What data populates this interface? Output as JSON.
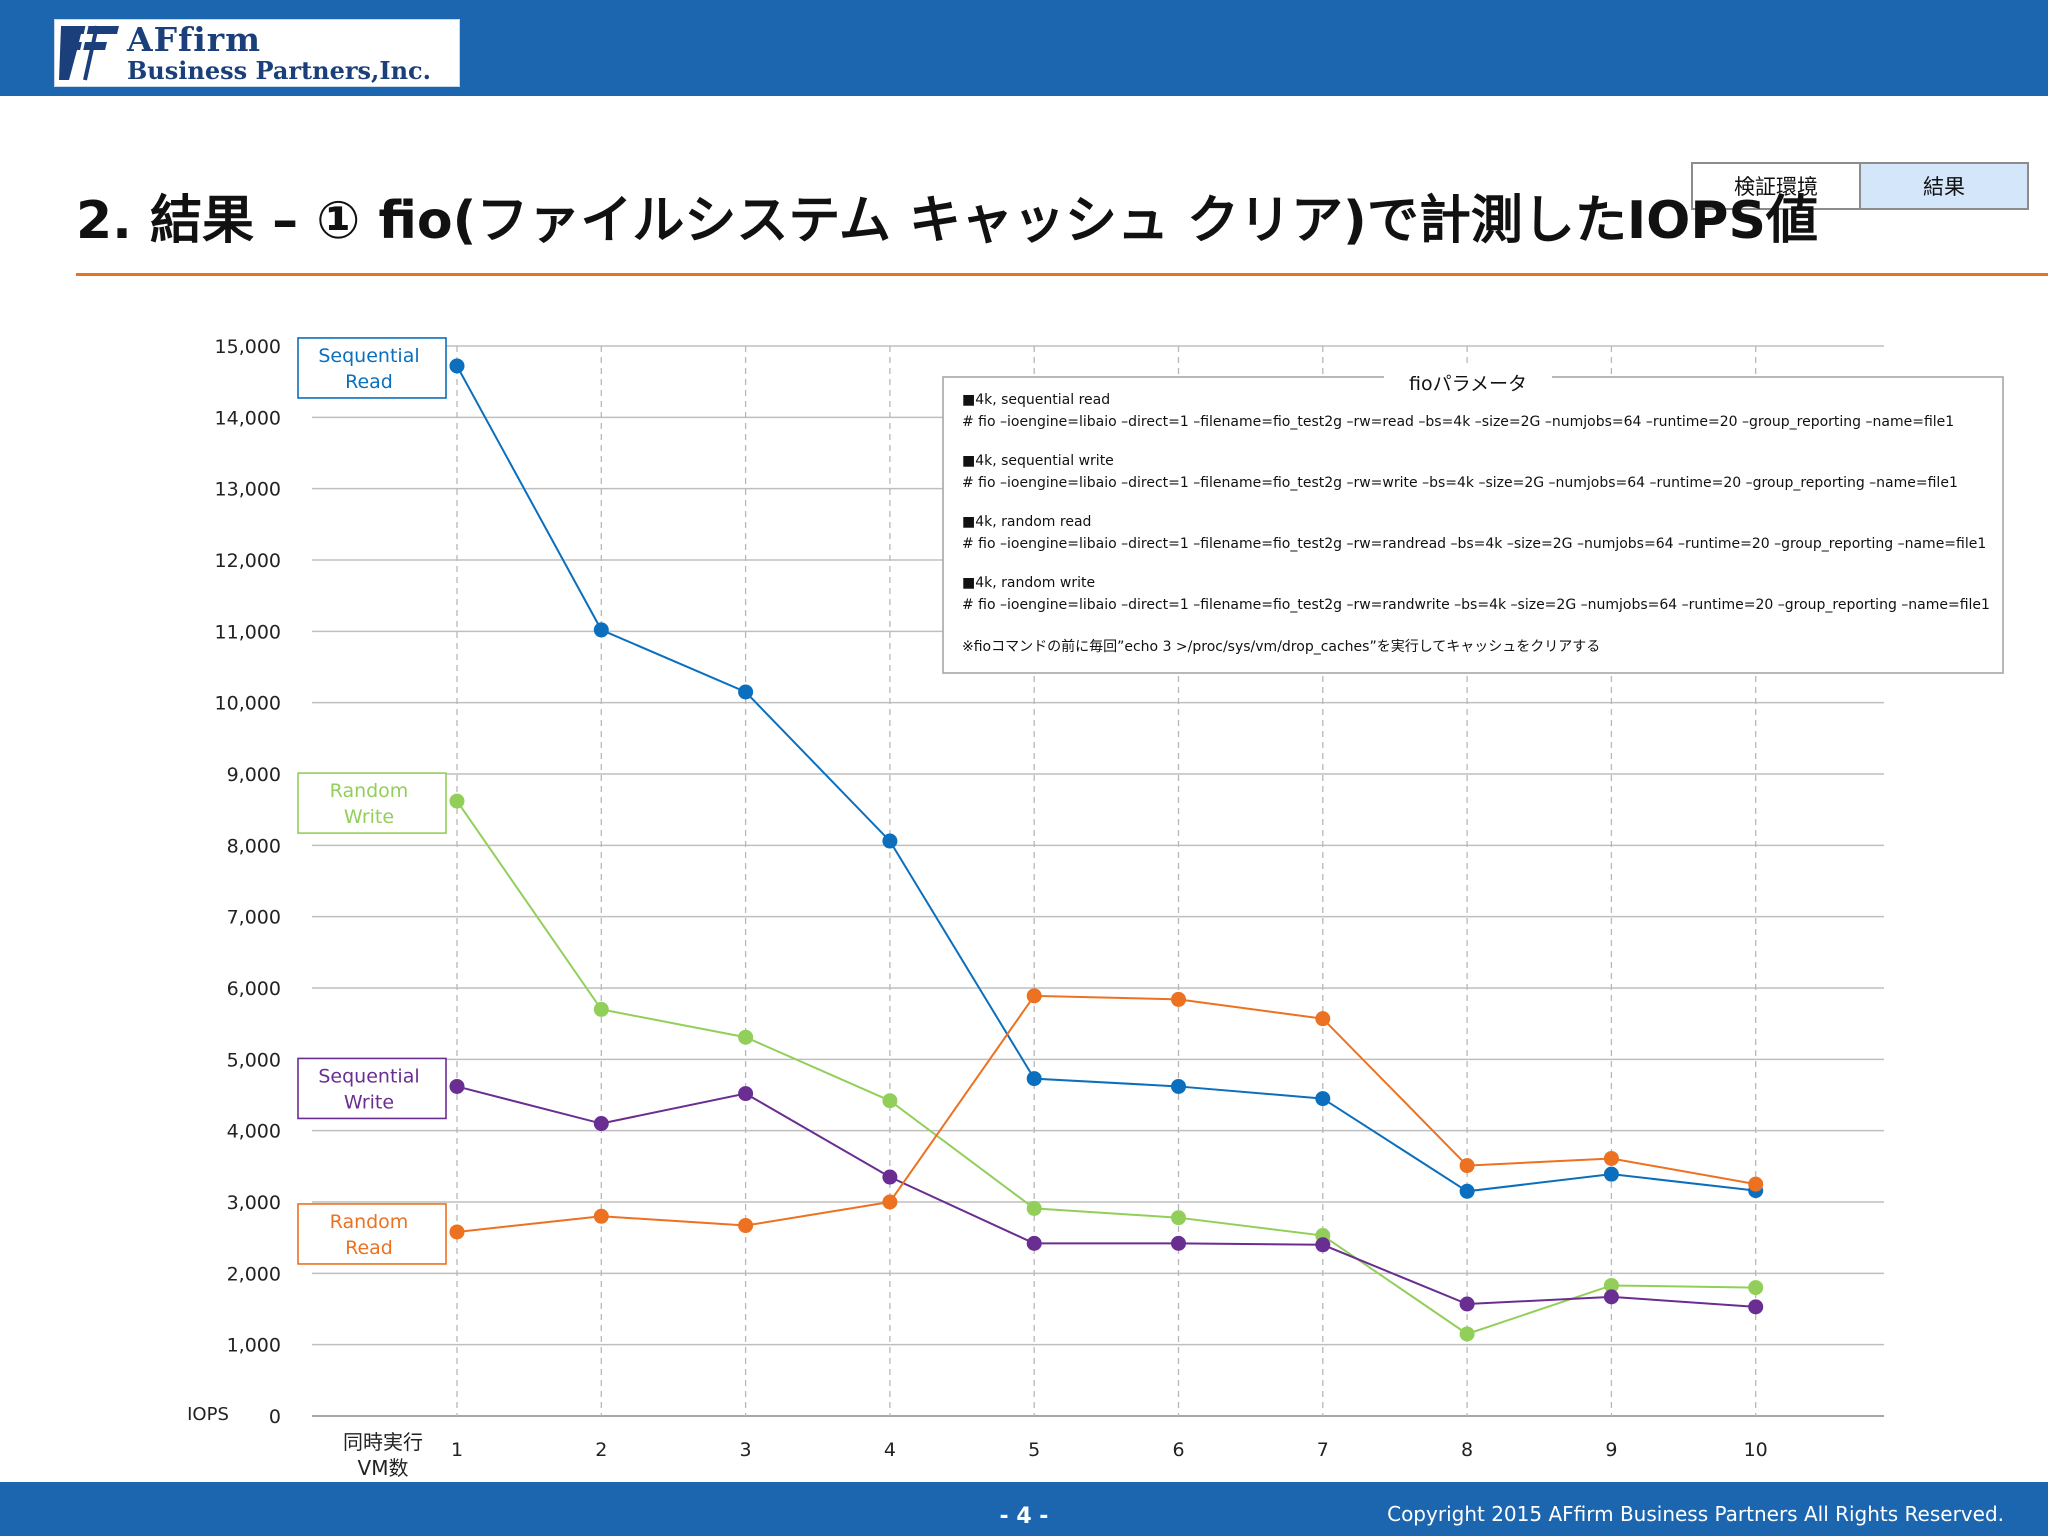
{
  "header": {
    "logo_line1": "AFfirm",
    "logo_line2": "Business Partners,Inc."
  },
  "nav": {
    "tabs": [
      {
        "label": "検証環境",
        "active": false
      },
      {
        "label": "結果",
        "active": true
      }
    ]
  },
  "page_title": "2. 結果 – ① fio(ファイルシステム キャッシュ クリア)で計測したIOPS値",
  "colors": {
    "brand_blue": "#1c66b0",
    "accent_orange": "#e8731e"
  },
  "chart_data": {
    "type": "line",
    "ylabel": "IOPS",
    "xlabel": "同時実行\nVM数",
    "ylim": [
      0,
      15000
    ],
    "ytick_labels": [
      "0",
      "1,000",
      "2,000",
      "3,000",
      "4,000",
      "5,000",
      "6,000",
      "7,000",
      "8,000",
      "9,000",
      "10,000",
      "11,000",
      "12,000",
      "13,000",
      "14,000",
      "15,000"
    ],
    "categories": [
      "1",
      "2",
      "3",
      "4",
      "5",
      "6",
      "7",
      "8",
      "9",
      "10"
    ],
    "grid": true,
    "series": [
      {
        "name": "Sequential\nRead",
        "color": "#0b6fbd",
        "values": [
          14720,
          11020,
          10150,
          8060,
          4730,
          4620,
          4450,
          3150,
          3390,
          3160
        ]
      },
      {
        "name": "Random\nWrite",
        "color": "#92cf5a",
        "values": [
          8620,
          5700,
          5310,
          4420,
          2910,
          2780,
          2530,
          1150,
          1830,
          1800
        ]
      },
      {
        "name": "Sequential\nWrite",
        "color": "#6a2d91",
        "values": [
          4620,
          4100,
          4520,
          3350,
          2420,
          2420,
          2400,
          1570,
          1670,
          1530
        ]
      },
      {
        "name": "Random\nRead",
        "color": "#ec7120",
        "values": [
          2580,
          2800,
          2670,
          3000,
          5890,
          5840,
          5570,
          3510,
          3610,
          3250
        ]
      }
    ],
    "annotation": {
      "title": "fioパラメータ",
      "lines": [
        "■4k, sequential read",
        "# fio –ioengine=libaio –direct=1 –filename=fio_test2g  –rw=read –bs=4k –size=2G –numjobs=64 –runtime=20 –group_reporting –name=file1",
        "■4k, sequential write",
        "# fio –ioengine=libaio –direct=1 –filename=fio_test2g  –rw=write –bs=4k –size=2G –numjobs=64 –runtime=20 –group_reporting –name=file1",
        "■4k, random read",
        "# fio –ioengine=libaio –direct=1 –filename=fio_test2g  –rw=randread –bs=4k –size=2G –numjobs=64 –runtime=20 –group_reporting –name=file1",
        "■4k, random write",
        "# fio –ioengine=libaio –direct=1 –filename=fio_test2g  –rw=randwrite –bs=4k –size=2G –numjobs=64 –runtime=20 –group_reporting –name=file1",
        "※fioコマンドの前に毎回”echo 3 >/proc/sys/vm/drop_caches”を実行してキャッシュをクリアする"
      ]
    }
  },
  "footer": {
    "page_number": "- 4 -",
    "copyright": "Copyright 2015 AFfirm Business Partners All Rights Reserved."
  }
}
